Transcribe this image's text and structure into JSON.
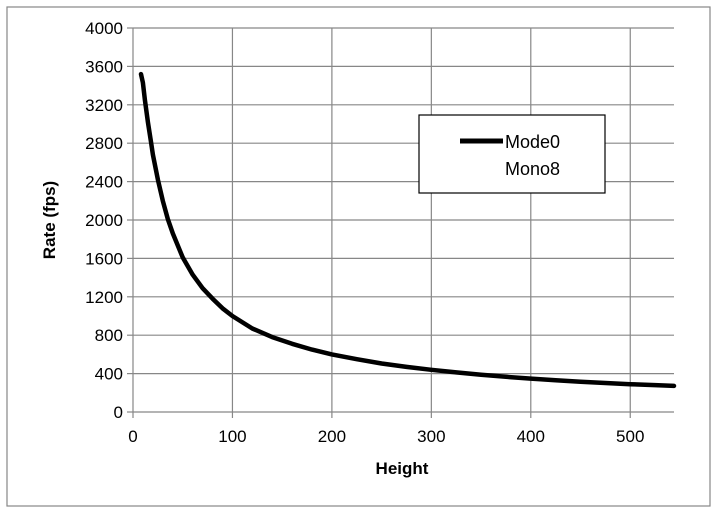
{
  "chart_data": {
    "type": "line",
    "title": "",
    "xlabel": "Height",
    "ylabel": "Rate (fps)",
    "xlim": [
      0,
      544
    ],
    "ylim": [
      0,
      4000
    ],
    "x_ticks": [
      0,
      100,
      200,
      300,
      400,
      500
    ],
    "y_ticks": [
      0,
      400,
      800,
      1200,
      1600,
      2000,
      2400,
      2800,
      3200,
      3600,
      4000
    ],
    "grid": true,
    "legend_position": "top-right",
    "legend_entries": [
      "Mode0",
      "Mono8"
    ],
    "series": [
      {
        "name": "Mode0 Mono8",
        "color": "#000000",
        "x": [
          8,
          10,
          12,
          15,
          18,
          20,
          25,
          30,
          35,
          40,
          50,
          60,
          70,
          80,
          90,
          100,
          120,
          140,
          160,
          180,
          200,
          225,
          250,
          275,
          300,
          325,
          350,
          375,
          400,
          425,
          450,
          475,
          500,
          525,
          544
        ],
        "y": [
          3520,
          3430,
          3250,
          3020,
          2820,
          2680,
          2420,
          2200,
          2010,
          1860,
          1610,
          1430,
          1290,
          1180,
          1080,
          1000,
          870,
          780,
          710,
          650,
          600,
          550,
          505,
          470,
          440,
          412,
          388,
          367,
          348,
          331,
          316,
          302,
          290,
          280,
          272
        ]
      }
    ]
  }
}
